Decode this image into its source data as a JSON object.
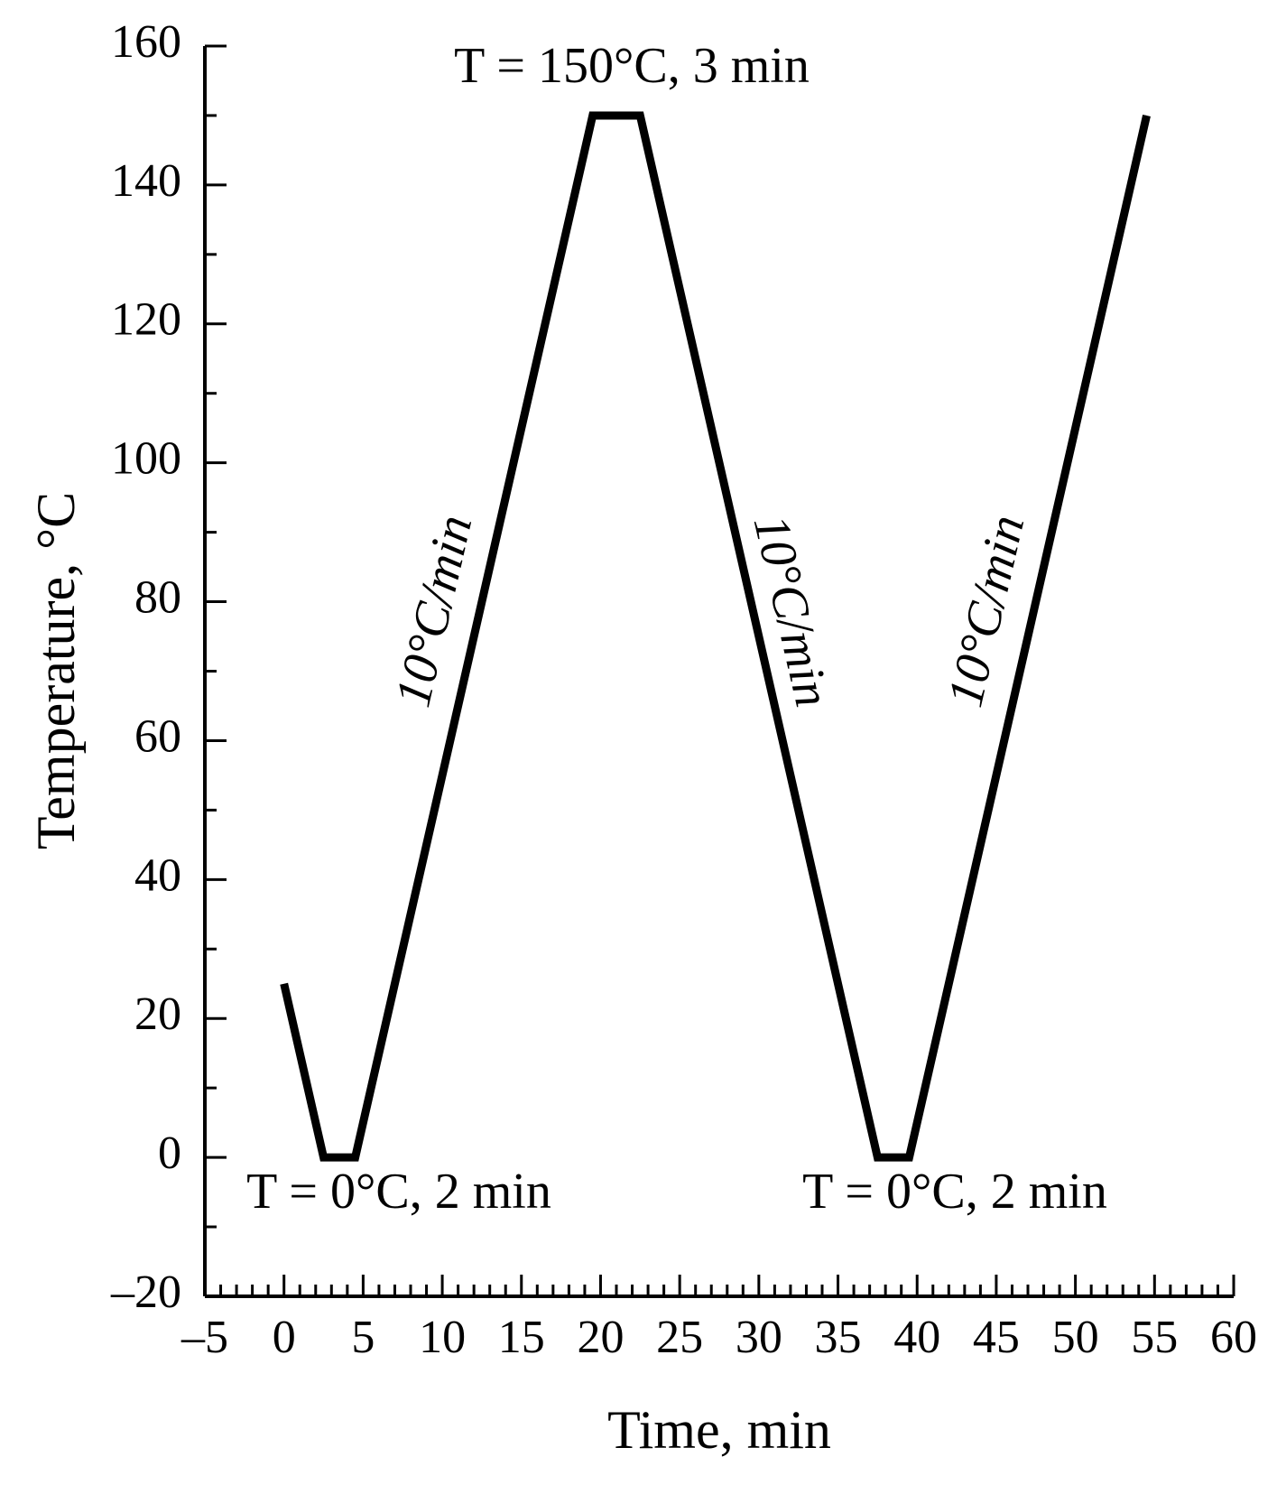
{
  "chart_data": {
    "type": "line",
    "x_label": "Time, min",
    "y_label": "Temperature, °C",
    "annotations": [
      "T = 150°C, 3 min",
      "T = 0°C, 2 min",
      "T = 0°C, 2 min",
      "10°C/min",
      "10°C/min",
      "10°C/min"
    ],
    "x": [
      0,
      2.5,
      4.5,
      19.5,
      22.5,
      37.5,
      39.5,
      54.5
    ],
    "series": [
      {
        "color": "#000000",
        "values": [
          25,
          0,
          0,
          150,
          150,
          0,
          0,
          150
        ]
      }
    ],
    "xlim": [
      -5,
      60
    ],
    "ylim": [
      -20,
      160
    ],
    "xticks": [
      {
        "value": -5,
        "label": "–5"
      },
      0,
      5,
      10,
      15,
      20,
      25,
      30,
      35,
      40,
      45,
      50,
      55,
      60
    ],
    "yticks": [
      {
        "value": -20,
        "label": "–20"
      },
      0,
      20,
      40,
      60,
      80,
      100,
      120,
      140,
      160
    ],
    "xminorticks": [
      -4,
      -3,
      -2,
      -1,
      1,
      2,
      3,
      4,
      6,
      7,
      8,
      9,
      11,
      12,
      13,
      14,
      16,
      17,
      18,
      19,
      21,
      22,
      23,
      24,
      26,
      27,
      28,
      29,
      31,
      32,
      33,
      34,
      36,
      37,
      38,
      39,
      41,
      42,
      43,
      44,
      46,
      47,
      48,
      49,
      51,
      52,
      53,
      54,
      56,
      57,
      58,
      59
    ],
    "yminorticks": [
      -10,
      10,
      30,
      50,
      70,
      90,
      110,
      130,
      150
    ]
  }
}
